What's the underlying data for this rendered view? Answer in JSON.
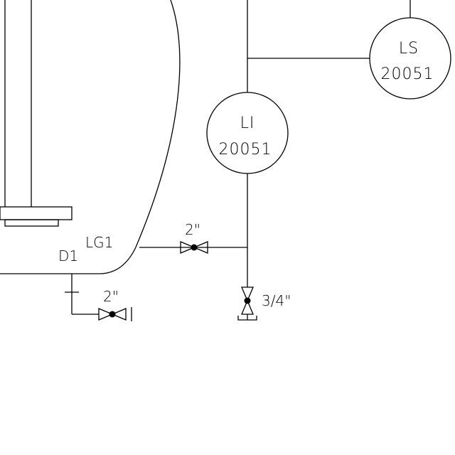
{
  "instruments": {
    "li": {
      "function": "LI",
      "number": "20051"
    },
    "ls": {
      "function": "LS",
      "number": "20051"
    }
  },
  "labels": {
    "nozzle_d1": "D1",
    "nozzle_lg1": "LG1",
    "valve_lg1_size": "2\"",
    "valve_drain_size": "2\"",
    "valve_bottom_size": "3/4\""
  },
  "colors": {
    "line": "#000000",
    "background": "#ffffff"
  }
}
